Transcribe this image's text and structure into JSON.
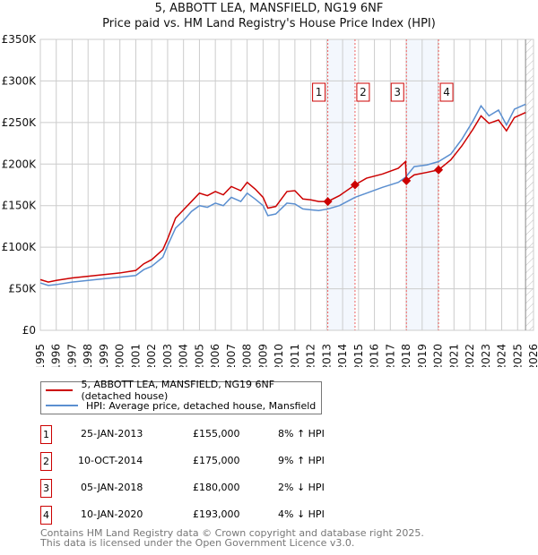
{
  "title": "5, ABBOTT LEA, MANSFIELD, NG19 6NF",
  "subtitle": "Price paid vs. HM Land Registry's House Price Index (HPI)",
  "chart_data": {
    "type": "line",
    "xlim": [
      1995,
      2026
    ],
    "ylim": [
      0,
      350000
    ],
    "yticks": [
      0,
      50000,
      100000,
      150000,
      200000,
      250000,
      300000,
      350000
    ],
    "ytick_labels": [
      "£0",
      "£50K",
      "£100K",
      "£150K",
      "£200K",
      "£250K",
      "£300K",
      "£350K"
    ],
    "xticks": [
      1995,
      1996,
      1997,
      1998,
      1999,
      2000,
      2001,
      2002,
      2003,
      2004,
      2005,
      2006,
      2007,
      2008,
      2009,
      2010,
      2011,
      2012,
      2013,
      2014,
      2015,
      2016,
      2017,
      2018,
      2019,
      2020,
      2021,
      2022,
      2023,
      2024,
      2025,
      2026
    ],
    "series": [
      {
        "name": "5, ABBOTT LEA, MANSFIELD, NG19 6NF (detached house)",
        "color": "#cc0000",
        "x": [
          1995,
          1995.5,
          1996,
          1997,
          1998,
          1999,
          2000,
          2001,
          2001.5,
          2002,
          2002.7,
          2003,
          2003.5,
          2004,
          2004.5,
          2005,
          2005.5,
          2006,
          2006.5,
          2007,
          2007.6,
          2008,
          2008.5,
          2009,
          2009.3,
          2009.8,
          2010.5,
          2011,
          2011.5,
          2012,
          2012.5,
          2013.07,
          2013.8,
          2014.78,
          2015.5,
          2016.5,
          2017.5,
          2017.95,
          2018.01,
          2018.5,
          2019.3,
          2020.03,
          2020.8,
          2021.5,
          2022.2,
          2022.7,
          2023.2,
          2023.8,
          2024.3,
          2024.8,
          2025.5
        ],
        "values": [
          61000,
          58000,
          60000,
          63000,
          65000,
          67000,
          69000,
          72000,
          80000,
          85000,
          97000,
          110000,
          135000,
          145000,
          155000,
          165000,
          162000,
          167000,
          163000,
          173000,
          168000,
          178000,
          170000,
          160000,
          147000,
          149000,
          167000,
          168000,
          158000,
          157000,
          155000,
          155000,
          162000,
          175000,
          183000,
          188000,
          195000,
          203000,
          180000,
          187000,
          190000,
          193000,
          205000,
          222000,
          242000,
          258000,
          249000,
          253000,
          240000,
          256000,
          262000
        ]
      },
      {
        "name": "HPI: Average price, detached house, Mansfield",
        "color": "#5b8fd0",
        "x": [
          1995,
          1995.5,
          1996,
          1997,
          1998,
          1999,
          2000,
          2001,
          2001.5,
          2002,
          2002.7,
          2003,
          2003.5,
          2004,
          2004.5,
          2005,
          2005.5,
          2006,
          2006.5,
          2007,
          2007.6,
          2008,
          2008.5,
          2009,
          2009.3,
          2009.8,
          2010.5,
          2011,
          2011.5,
          2012,
          2012.5,
          2013.07,
          2013.8,
          2014.78,
          2015.5,
          2016.5,
          2017.5,
          2017.95,
          2018.5,
          2019.3,
          2020.03,
          2020.8,
          2021.5,
          2022.2,
          2022.7,
          2023.2,
          2023.8,
          2024.3,
          2024.8,
          2025.5
        ],
        "values": [
          57000,
          54000,
          55000,
          58000,
          60000,
          62000,
          64000,
          66000,
          73000,
          77000,
          88000,
          102000,
          123000,
          132000,
          143000,
          150000,
          148000,
          153000,
          150000,
          160000,
          155000,
          165000,
          158000,
          150000,
          138000,
          140000,
          153000,
          152000,
          146000,
          145000,
          144000,
          146000,
          150000,
          160000,
          165000,
          172000,
          178000,
          184000,
          197000,
          199000,
          203000,
          212000,
          230000,
          252000,
          270000,
          258000,
          265000,
          247000,
          266000,
          272000
        ]
      }
    ],
    "sales": [
      {
        "label": "1",
        "x": 2013.07,
        "price": 155000
      },
      {
        "label": "2",
        "x": 2014.78,
        "price": 175000
      },
      {
        "label": "3",
        "x": 2018.01,
        "price": 180000
      },
      {
        "label": "4",
        "x": 2020.03,
        "price": 193000
      }
    ],
    "hatch_from": 2025.5,
    "grid": true
  },
  "legend": {
    "items": [
      "5, ABBOTT LEA, MANSFIELD, NG19 6NF (detached house)",
      "HPI: Average price, detached house, Mansfield"
    ]
  },
  "table": [
    {
      "num": "1",
      "date": "25-JAN-2013",
      "price": "£155,000",
      "hpi": "8% ↑ HPI"
    },
    {
      "num": "2",
      "date": "10-OCT-2014",
      "price": "£175,000",
      "hpi": "9% ↑ HPI"
    },
    {
      "num": "3",
      "date": "05-JAN-2018",
      "price": "£180,000",
      "hpi": "2% ↓ HPI"
    },
    {
      "num": "4",
      "date": "10-JAN-2020",
      "price": "£193,000",
      "hpi": "4% ↓ HPI"
    }
  ],
  "footer": [
    "Contains HM Land Registry data © Crown copyright and database right 2025.",
    "This data is licensed under the Open Government Licence v3.0."
  ]
}
